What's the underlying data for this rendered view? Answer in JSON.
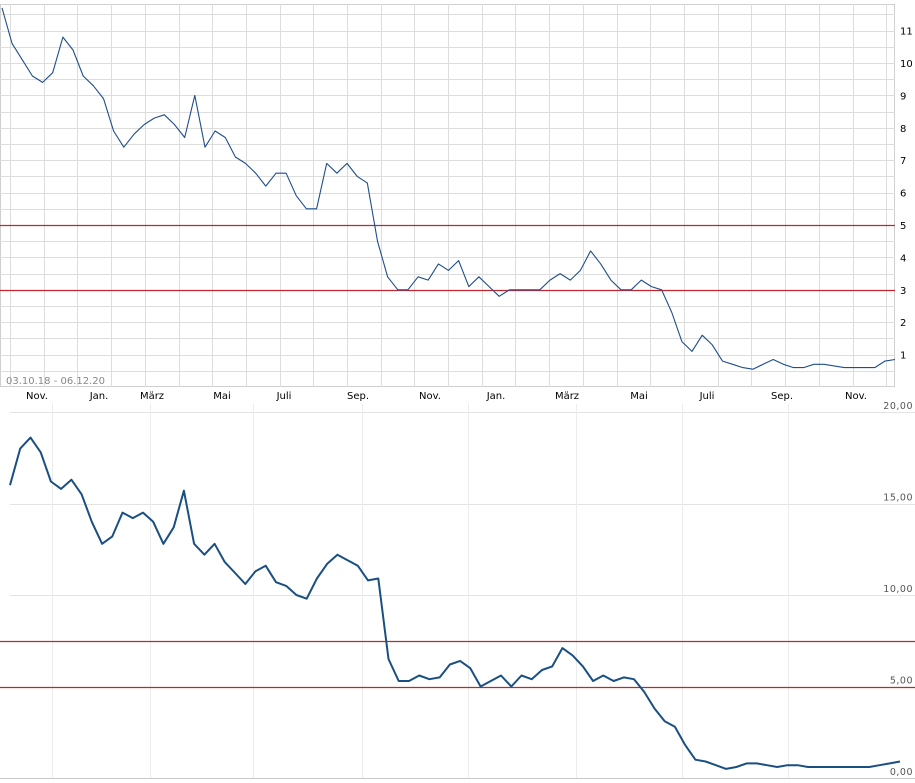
{
  "chart_data": [
    {
      "type": "line",
      "date_range_label": "03.10.18 - 06.12.20",
      "x_tick_labels": [
        "Nov.",
        "Jan.",
        "März",
        "Mai",
        "Juli",
        "Sep.",
        "Nov.",
        "Jan.",
        "März",
        "Mai",
        "Juli",
        "Sep.",
        "Nov."
      ],
      "y_tick_labels": [
        "1",
        "2",
        "3",
        "4",
        "5",
        "6",
        "7",
        "8",
        "9",
        "10",
        "11"
      ],
      "ylim": [
        0,
        11.7
      ],
      "grid": true,
      "reference_lines": [
        5,
        3
      ],
      "line_color": "#1f4e8c",
      "reference_color": "#c0262d",
      "series": [
        {
          "values": [
            11.7,
            10.6,
            10.1,
            9.6,
            9.4,
            9.7,
            10.8,
            10.4,
            9.6,
            9.3,
            8.9,
            7.9,
            7.4,
            7.8,
            8.1,
            8.3,
            8.4,
            8.1,
            7.7,
            9.0,
            7.4,
            7.9,
            7.7,
            7.1,
            6.9,
            6.6,
            6.2,
            6.6,
            6.6,
            5.9,
            5.5,
            5.5,
            6.9,
            6.6,
            6.9,
            6.5,
            6.3,
            4.5,
            3.4,
            3.0,
            3.0,
            3.4,
            3.3,
            3.8,
            3.6,
            3.9,
            3.1,
            3.4,
            3.1,
            2.8,
            3.0,
            3.0,
            3.0,
            3.0,
            3.3,
            3.5,
            3.3,
            3.6,
            4.2,
            3.8,
            3.3,
            3.0,
            3.0,
            3.3,
            3.1,
            3.0,
            2.3,
            1.4,
            1.1,
            1.6,
            1.3,
            0.8,
            0.7,
            0.6,
            0.55,
            0.7,
            0.85,
            0.7,
            0.6,
            0.6,
            0.7,
            0.7,
            0.65,
            0.6,
            0.6,
            0.6,
            0.6,
            0.8,
            0.85
          ]
        }
      ]
    },
    {
      "type": "line",
      "y_tick_labels": [
        "0,00",
        "5,00",
        "10,00",
        "15,00",
        "20,00"
      ],
      "ylim": [
        0,
        20
      ],
      "grid": true,
      "reference_lines": [
        7.5,
        5
      ],
      "line_color": "#1a4f82",
      "reference_color": "#c0262d",
      "series": [
        {
          "values": [
            16.0,
            18.0,
            18.6,
            17.8,
            16.2,
            15.8,
            16.3,
            15.5,
            14.0,
            12.8,
            13.2,
            14.5,
            14.2,
            14.5,
            14.0,
            12.8,
            13.7,
            15.7,
            12.8,
            12.2,
            12.8,
            11.8,
            11.2,
            10.6,
            11.3,
            11.6,
            10.7,
            10.5,
            10.0,
            9.8,
            10.9,
            11.7,
            12.2,
            11.9,
            11.6,
            10.8,
            10.9,
            6.5,
            5.3,
            5.3,
            5.6,
            5.4,
            5.5,
            6.2,
            6.4,
            6.0,
            5.0,
            5.3,
            5.6,
            5.0,
            5.6,
            5.4,
            5.9,
            6.1,
            7.1,
            6.7,
            6.1,
            5.3,
            5.6,
            5.3,
            5.5,
            5.4,
            4.7,
            3.8,
            3.1,
            2.8,
            1.8,
            1.0,
            0.9,
            0.7,
            0.5,
            0.6,
            0.8,
            0.8,
            0.7,
            0.6,
            0.7,
            0.7,
            0.6,
            0.6,
            0.6,
            0.6,
            0.6,
            0.6,
            0.6,
            0.7,
            0.8,
            0.9
          ]
        }
      ]
    }
  ]
}
